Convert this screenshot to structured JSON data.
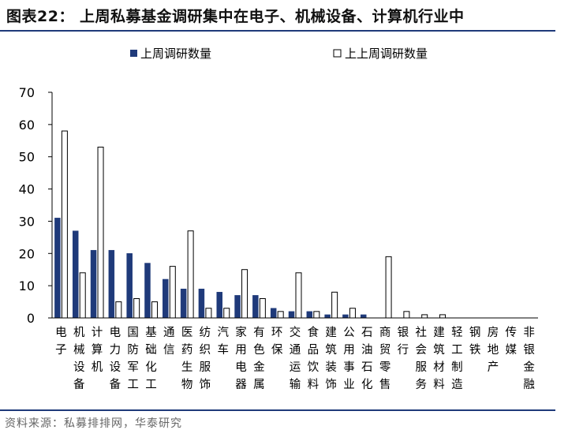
{
  "header": {
    "title": "图表22：  上周私募基金调研集中在电子、机械设备、计算机行业中"
  },
  "footer": {
    "source": "资料来源：私募排排网，华泰研究"
  },
  "colors": {
    "series_last_week": "#1f3a7a",
    "series_prev_week": "#ffffff",
    "rule": "#1f3a7a"
  },
  "chart_data": {
    "type": "bar",
    "title": "",
    "xlabel": "",
    "ylabel": "",
    "ylim": [
      0,
      70
    ],
    "yticks": [
      0,
      10,
      20,
      30,
      40,
      50,
      60,
      70
    ],
    "grid": false,
    "legend_position": "top",
    "categories": [
      "电子",
      "机械设备",
      "计算机",
      "电力设备",
      "国防军工",
      "基础化工",
      "通信",
      "医药生物",
      "纺织服饰",
      "汽车",
      "家用电器",
      "有色金属",
      "环保",
      "交通运输",
      "食品饮料",
      "建筑装饰",
      "公用事业",
      "石油石化",
      "商贸零售",
      "银行",
      "社会服务",
      "建筑材料",
      "轻工制造",
      "钢铁",
      "房地产",
      "传媒",
      "非银金融"
    ],
    "series": [
      {
        "name": "上周调研数量",
        "values": [
          31,
          27,
          21,
          21,
          20,
          17,
          12,
          9,
          9,
          8,
          7,
          7,
          3,
          2,
          2,
          1,
          1,
          1,
          0,
          0,
          0,
          0,
          0,
          0,
          0,
          0,
          0
        ]
      },
      {
        "name": "上上周调研数量",
        "values": [
          58,
          14,
          53,
          5,
          6,
          5,
          16,
          27,
          3,
          3,
          15,
          6,
          2,
          14,
          2,
          8,
          3,
          0,
          19,
          2,
          1,
          1,
          0,
          0,
          0,
          0,
          0
        ]
      }
    ]
  }
}
